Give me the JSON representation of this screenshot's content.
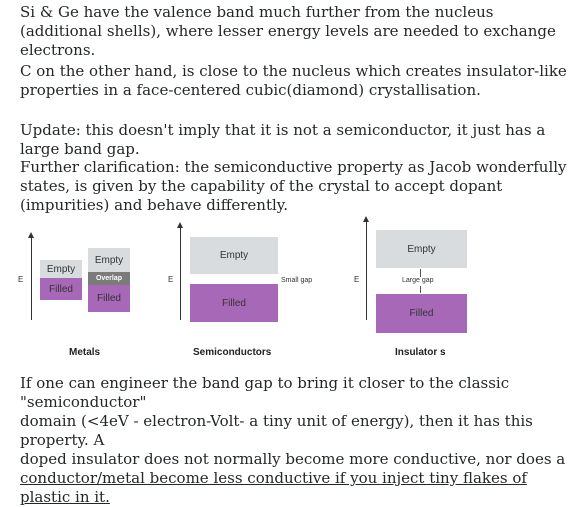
{
  "paragraphs": {
    "p1": "Si & Ge have the valence band much further from the nucleus (additional shells), where lesser energy levels are needed to exchange electrons.",
    "p2": "C on the other hand, is close to the nucleus which creates insulator-like properties in a face-centered cubic(diamond) crystallisation.",
    "p3": "Update: this doesn't imply that it is not a semiconductor, it just has a large band gap.",
    "p4": "Further clarification: the semiconductive property as Jacob wonderfully states, is given by the capability of the crystal to accept dopant (impurities) and behave differently.",
    "p5_line1": "If one can engineer the band gap to bring it closer to the classic \"semiconductor\"",
    "p5_line2": "domain (<4eV - electron-Volt- a tiny unit of energy), then it has this property. A",
    "p5_line3": "doped insulator does not normally become more conductive, nor does a",
    "p5_line4": "conductor/metal become less conductive if you inject tiny flakes of plastic in it."
  },
  "diagram": {
    "energy_axis_label": "E",
    "metals": {
      "caption": "Metals",
      "left_empty": "Empty",
      "left_filled": "Filled",
      "right_empty": "Empty",
      "right_overlap": "Overlap",
      "right_filled": "Filled"
    },
    "semiconductors": {
      "caption": "Semiconductors",
      "empty": "Empty",
      "filled": "Filled",
      "gap": "Small gap"
    },
    "insulators": {
      "caption": "Insulator s",
      "empty": "Empty",
      "filled": "Filled",
      "gap": "Large gap"
    }
  }
}
